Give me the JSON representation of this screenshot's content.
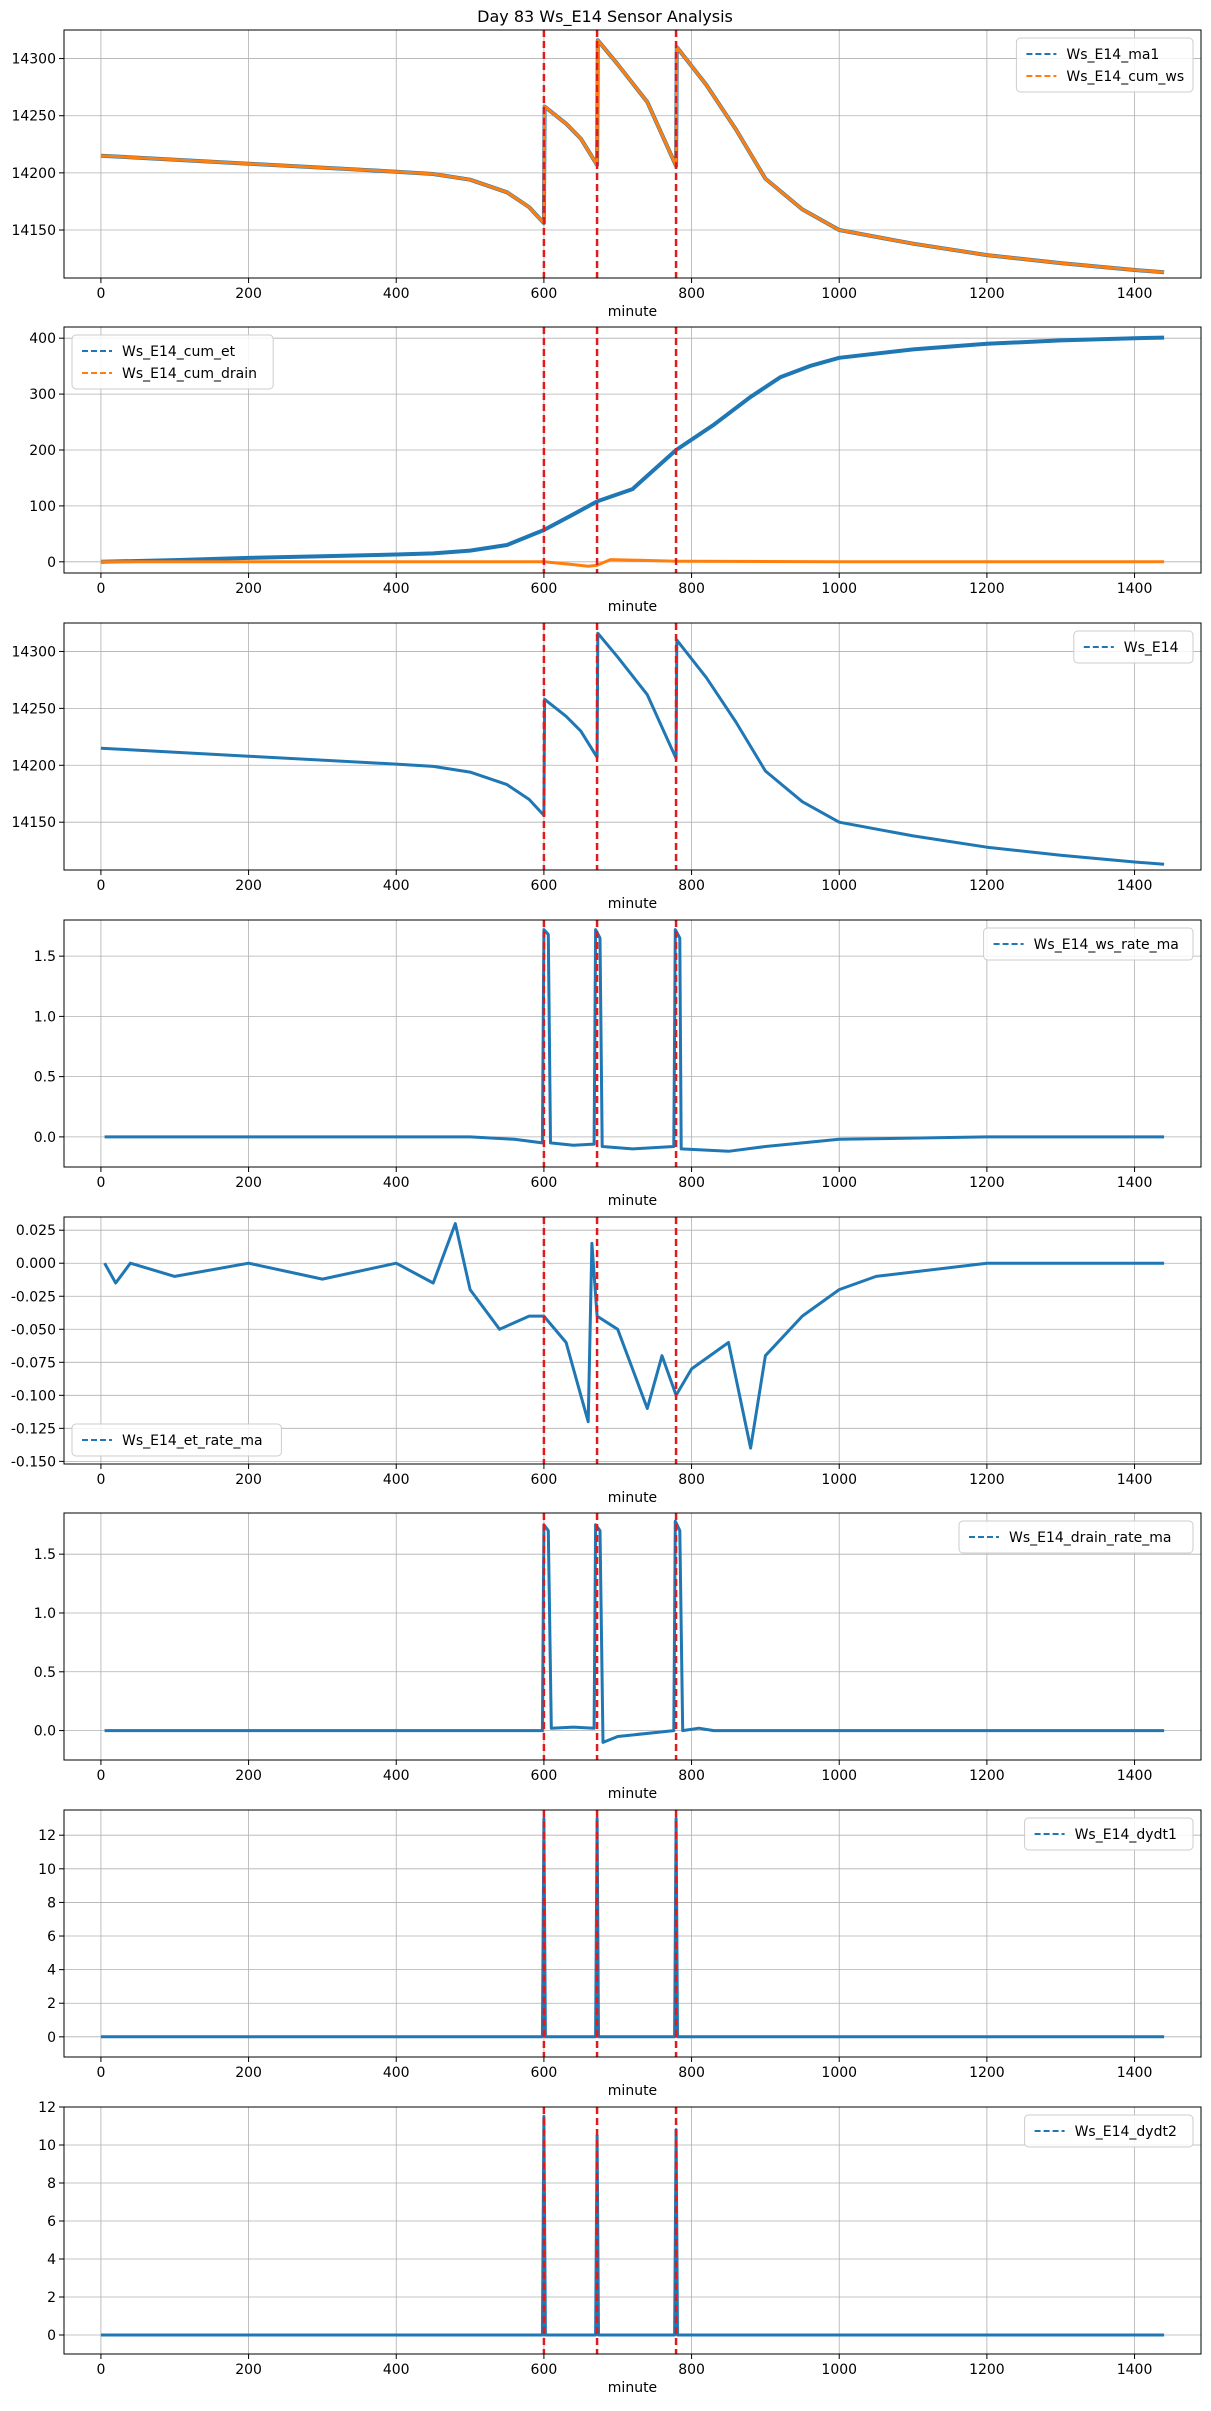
{
  "title": "Day 83 Ws_E14 Sensor Analysis",
  "colors": {
    "blue": "#1f77b4",
    "orange": "#ff7f0e",
    "event": "#e31a1c",
    "grid": "#b0b0b0"
  },
  "chart_data": [
    {
      "type": "line",
      "xlabel": "minute",
      "xlim": [
        -50,
        1490
      ],
      "ylim": [
        14108,
        14325
      ],
      "xticks": [
        0,
        200,
        400,
        600,
        800,
        1000,
        1200,
        1400
      ],
      "yticks": [
        14150,
        14200,
        14250,
        14300
      ],
      "legend": "top-right",
      "events": [
        600,
        672,
        779
      ],
      "series": [
        {
          "name": "Ws_E14_ma1",
          "color": "blue",
          "points": [
            [
              0,
              14215
            ],
            [
              200,
              14208
            ],
            [
              400,
              14201
            ],
            [
              450,
              14199
            ],
            [
              500,
              14194
            ],
            [
              550,
              14183
            ],
            [
              580,
              14170
            ],
            [
              600,
              14156
            ],
            [
              601,
              14258
            ],
            [
              630,
              14243
            ],
            [
              650,
              14230
            ],
            [
              672,
              14207
            ],
            [
              673,
              14316
            ],
            [
              700,
              14295
            ],
            [
              740,
              14262
            ],
            [
              779,
              14206
            ],
            [
              780,
              14310
            ],
            [
              820,
              14277
            ],
            [
              860,
              14238
            ],
            [
              900,
              14195
            ],
            [
              950,
              14168
            ],
            [
              1000,
              14150
            ],
            [
              1100,
              14138
            ],
            [
              1200,
              14128
            ],
            [
              1300,
              14121
            ],
            [
              1400,
              14115
            ],
            [
              1440,
              14113
            ]
          ]
        },
        {
          "name": "Ws_E14_cum_ws",
          "color": "orange",
          "points": [
            [
              0,
              14215
            ],
            [
              200,
              14208
            ],
            [
              400,
              14201
            ],
            [
              450,
              14199
            ],
            [
              500,
              14194
            ],
            [
              550,
              14183
            ],
            [
              580,
              14170
            ],
            [
              600,
              14156
            ],
            [
              601,
              14258
            ],
            [
              630,
              14243
            ],
            [
              650,
              14230
            ],
            [
              672,
              14207
            ],
            [
              673,
              14316
            ],
            [
              700,
              14295
            ],
            [
              740,
              14262
            ],
            [
              779,
              14206
            ],
            [
              780,
              14310
            ],
            [
              820,
              14277
            ],
            [
              860,
              14238
            ],
            [
              900,
              14195
            ],
            [
              950,
              14168
            ],
            [
              1000,
              14150
            ],
            [
              1100,
              14138
            ],
            [
              1200,
              14128
            ],
            [
              1300,
              14121
            ],
            [
              1400,
              14115
            ],
            [
              1440,
              14113
            ]
          ]
        }
      ]
    },
    {
      "type": "line",
      "xlabel": "minute",
      "xlim": [
        -50,
        1490
      ],
      "ylim": [
        -20,
        420
      ],
      "xticks": [
        0,
        200,
        400,
        600,
        800,
        1000,
        1200,
        1400
      ],
      "yticks": [
        0,
        100,
        200,
        300,
        400
      ],
      "legend": "top-left",
      "events": [
        600,
        672,
        779
      ],
      "series": [
        {
          "name": "Ws_E14_cum_et",
          "color": "blue",
          "points": [
            [
              0,
              0
            ],
            [
              100,
              3
            ],
            [
              200,
              7
            ],
            [
              300,
              10
            ],
            [
              400,
              13
            ],
            [
              450,
              15
            ],
            [
              500,
              20
            ],
            [
              550,
              30
            ],
            [
              600,
              57
            ],
            [
              640,
              85
            ],
            [
              672,
              108
            ],
            [
              720,
              130
            ],
            [
              779,
              200
            ],
            [
              830,
              245
            ],
            [
              880,
              295
            ],
            [
              920,
              330
            ],
            [
              960,
              350
            ],
            [
              1000,
              365
            ],
            [
              1100,
              380
            ],
            [
              1200,
              390
            ],
            [
              1300,
              396
            ],
            [
              1400,
              400
            ],
            [
              1440,
              401
            ]
          ]
        },
        {
          "name": "Ws_E14_cum_drain",
          "color": "orange",
          "points": [
            [
              0,
              0
            ],
            [
              400,
              0
            ],
            [
              600,
              0
            ],
            [
              640,
              -5
            ],
            [
              660,
              -8
            ],
            [
              672,
              -6
            ],
            [
              690,
              4
            ],
            [
              720,
              3
            ],
            [
              779,
              1
            ],
            [
              800,
              1
            ],
            [
              1000,
              0
            ],
            [
              1440,
              0
            ]
          ]
        }
      ]
    },
    {
      "type": "line",
      "xlabel": "minute",
      "xlim": [
        -50,
        1490
      ],
      "ylim": [
        14108,
        14325
      ],
      "xticks": [
        0,
        200,
        400,
        600,
        800,
        1000,
        1200,
        1400
      ],
      "yticks": [
        14150,
        14200,
        14250,
        14300
      ],
      "legend": "top-right",
      "events": [
        600,
        672,
        779
      ],
      "series": [
        {
          "name": "Ws_E14",
          "color": "blue",
          "points": [
            [
              0,
              14215
            ],
            [
              200,
              14208
            ],
            [
              400,
              14201
            ],
            [
              450,
              14199
            ],
            [
              500,
              14194
            ],
            [
              550,
              14183
            ],
            [
              580,
              14170
            ],
            [
              600,
              14156
            ],
            [
              601,
              14258
            ],
            [
              630,
              14243
            ],
            [
              650,
              14230
            ],
            [
              672,
              14207
            ],
            [
              673,
              14316
            ],
            [
              700,
              14295
            ],
            [
              740,
              14262
            ],
            [
              779,
              14206
            ],
            [
              780,
              14310
            ],
            [
              820,
              14277
            ],
            [
              860,
              14238
            ],
            [
              900,
              14195
            ],
            [
              950,
              14168
            ],
            [
              1000,
              14150
            ],
            [
              1100,
              14138
            ],
            [
              1200,
              14128
            ],
            [
              1300,
              14121
            ],
            [
              1400,
              14115
            ],
            [
              1440,
              14113
            ]
          ]
        }
      ]
    },
    {
      "type": "line",
      "xlabel": "minute",
      "xlim": [
        -50,
        1490
      ],
      "ylim": [
        -0.25,
        1.8
      ],
      "xticks": [
        0,
        200,
        400,
        600,
        800,
        1000,
        1200,
        1400
      ],
      "yticks": [
        0.0,
        0.5,
        1.0,
        1.5
      ],
      "ytick_labels": [
        "0.0",
        "0.5",
        "1.0",
        "1.5"
      ],
      "legend": "top-right",
      "events": [
        600,
        672,
        779
      ],
      "series": [
        {
          "name": "Ws_E14_ws_rate_ma",
          "color": "blue",
          "points": [
            [
              5,
              0
            ],
            [
              200,
              0
            ],
            [
              400,
              0
            ],
            [
              500,
              0
            ],
            [
              560,
              -0.02
            ],
            [
              598,
              -0.05
            ],
            [
              600,
              1.72
            ],
            [
              606,
              1.68
            ],
            [
              609,
              -0.05
            ],
            [
              640,
              -0.07
            ],
            [
              668,
              -0.06
            ],
            [
              670,
              1.72
            ],
            [
              676,
              1.65
            ],
            [
              679,
              -0.08
            ],
            [
              720,
              -0.1
            ],
            [
              776,
              -0.08
            ],
            [
              778,
              1.72
            ],
            [
              784,
              1.65
            ],
            [
              786,
              -0.1
            ],
            [
              850,
              -0.12
            ],
            [
              900,
              -0.08
            ],
            [
              1000,
              -0.02
            ],
            [
              1200,
              0
            ],
            [
              1440,
              0
            ]
          ]
        }
      ]
    },
    {
      "type": "line",
      "xlabel": "minute",
      "xlim": [
        -50,
        1490
      ],
      "ylim": [
        -0.152,
        0.035
      ],
      "xticks": [
        0,
        200,
        400,
        600,
        800,
        1000,
        1200,
        1400
      ],
      "yticks": [
        -0.15,
        -0.125,
        -0.1,
        -0.075,
        -0.05,
        -0.025,
        0.0,
        0.025
      ],
      "ytick_labels": [
        "-0.150",
        "-0.125",
        "-0.100",
        "-0.075",
        "-0.050",
        "-0.025",
        "0.000",
        "0.025"
      ],
      "legend": "bottom-left",
      "events": [
        600,
        672,
        779
      ],
      "series": [
        {
          "name": "Ws_E14_et_rate_ma",
          "color": "blue",
          "points": [
            [
              5,
              0
            ],
            [
              20,
              -0.015
            ],
            [
              40,
              0
            ],
            [
              100,
              -0.01
            ],
            [
              200,
              0
            ],
            [
              300,
              -0.012
            ],
            [
              400,
              0
            ],
            [
              450,
              -0.015
            ],
            [
              480,
              0.03
            ],
            [
              500,
              -0.02
            ],
            [
              540,
              -0.05
            ],
            [
              580,
              -0.04
            ],
            [
              600,
              -0.04
            ],
            [
              630,
              -0.06
            ],
            [
              650,
              -0.1
            ],
            [
              660,
              -0.12
            ],
            [
              665,
              0.015
            ],
            [
              672,
              -0.04
            ],
            [
              700,
              -0.05
            ],
            [
              720,
              -0.08
            ],
            [
              740,
              -0.11
            ],
            [
              760,
              -0.07
            ],
            [
              779,
              -0.1
            ],
            [
              800,
              -0.08
            ],
            [
              850,
              -0.06
            ],
            [
              880,
              -0.14
            ],
            [
              900,
              -0.07
            ],
            [
              950,
              -0.04
            ],
            [
              1000,
              -0.02
            ],
            [
              1050,
              -0.01
            ],
            [
              1200,
              0
            ],
            [
              1440,
              0
            ]
          ]
        }
      ]
    },
    {
      "type": "line",
      "xlabel": "minute",
      "xlim": [
        -50,
        1490
      ],
      "ylim": [
        -0.25,
        1.85
      ],
      "xticks": [
        0,
        200,
        400,
        600,
        800,
        1000,
        1200,
        1400
      ],
      "yticks": [
        0.0,
        0.5,
        1.0,
        1.5
      ],
      "ytick_labels": [
        "0.0",
        "0.5",
        "1.0",
        "1.5"
      ],
      "legend": "top-right",
      "events": [
        600,
        672,
        779
      ],
      "series": [
        {
          "name": "Ws_E14_drain_rate_ma",
          "color": "blue",
          "points": [
            [
              5,
              0
            ],
            [
              598,
              0
            ],
            [
              600,
              1.75
            ],
            [
              606,
              1.7
            ],
            [
              610,
              0.02
            ],
            [
              640,
              0.03
            ],
            [
              668,
              0.02
            ],
            [
              670,
              1.75
            ],
            [
              676,
              1.7
            ],
            [
              680,
              -0.1
            ],
            [
              700,
              -0.05
            ],
            [
              776,
              0
            ],
            [
              778,
              1.78
            ],
            [
              784,
              1.7
            ],
            [
              788,
              0
            ],
            [
              810,
              0.02
            ],
            [
              830,
              0
            ],
            [
              1440,
              0
            ]
          ]
        }
      ]
    },
    {
      "type": "line",
      "xlabel": "minute",
      "xlim": [
        -50,
        1490
      ],
      "ylim": [
        -1.2,
        13.5
      ],
      "xticks": [
        0,
        200,
        400,
        600,
        800,
        1000,
        1200,
        1400
      ],
      "yticks": [
        0,
        2,
        4,
        6,
        8,
        10,
        12
      ],
      "legend": "top-right",
      "events": [
        600,
        672,
        779
      ],
      "series": [
        {
          "name": "Ws_E14_dydt1",
          "color": "blue",
          "points": [
            [
              0,
              0
            ],
            [
              598,
              0
            ],
            [
              600,
              13
            ],
            [
              602,
              0
            ],
            [
              670,
              0
            ],
            [
              672,
              13
            ],
            [
              674,
              0
            ],
            [
              777,
              0
            ],
            [
              779,
              13
            ],
            [
              781,
              0
            ],
            [
              1440,
              0
            ]
          ]
        }
      ]
    },
    {
      "type": "line",
      "xlabel": "minute",
      "xlim": [
        -50,
        1490
      ],
      "ylim": [
        -1.0,
        12.0
      ],
      "xticks": [
        0,
        200,
        400,
        600,
        800,
        1000,
        1200,
        1400
      ],
      "yticks": [
        0,
        2,
        4,
        6,
        8,
        10,
        12
      ],
      "legend": "top-right",
      "events": [
        600,
        672,
        779
      ],
      "series": [
        {
          "name": "Ws_E14_dydt2",
          "color": "blue",
          "points": [
            [
              0,
              0
            ],
            [
              598,
              0
            ],
            [
              600,
              11.5
            ],
            [
              602,
              0
            ],
            [
              670,
              0
            ],
            [
              672,
              10.5
            ],
            [
              674,
              0
            ],
            [
              777,
              0
            ],
            [
              779,
              10.8
            ],
            [
              781,
              0
            ],
            [
              1440,
              0
            ]
          ]
        }
      ]
    }
  ]
}
